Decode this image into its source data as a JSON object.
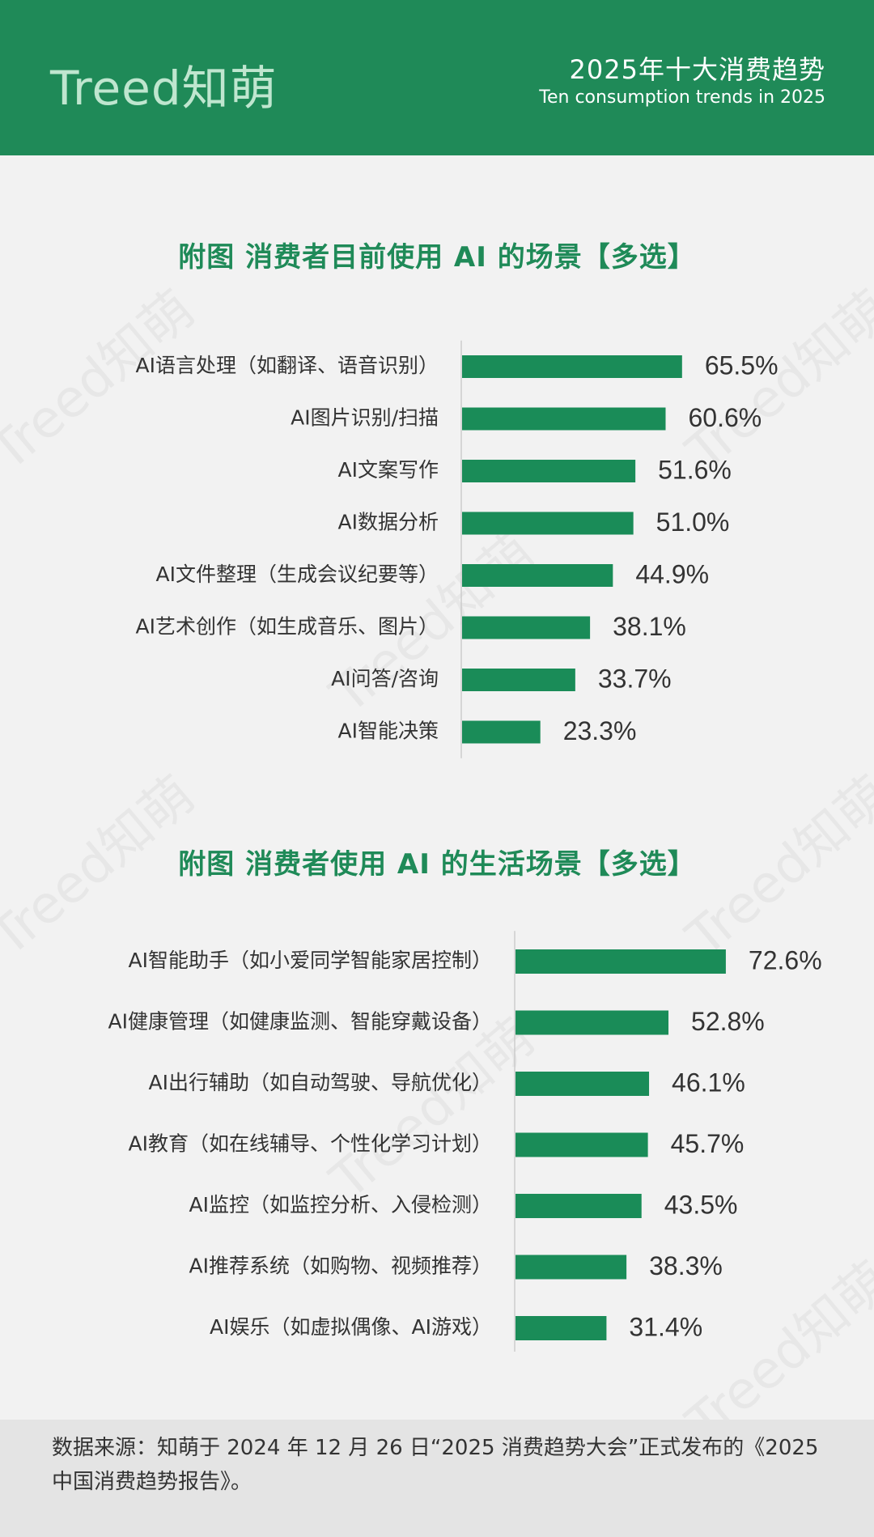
{
  "header": {
    "logo": "Treed知萌",
    "title_cn": "2025年十大消费趋势",
    "title_en": "Ten consumption trends in 2025"
  },
  "watermark": "Treed知萌",
  "colors": {
    "brand": "#1f8a58",
    "bar": "#1a8c58",
    "footer_bg": "#e4e4e4"
  },
  "chart_data": [
    {
      "type": "bar",
      "orientation": "horizontal",
      "title": "附图  消费者目前使用 AI 的场景【多选】",
      "categories": [
        "AI语言处理（如翻译、语音识别）",
        "AI图片识别/扫描",
        "AI文案写作",
        "AI数据分析",
        "AI文件整理（生成会议纪要等）",
        "AI艺术创作（如生成音乐、图片）",
        "AI问答/咨询",
        "AI智能决策"
      ],
      "values": [
        65.5,
        60.6,
        51.6,
        51.0,
        44.9,
        38.1,
        33.7,
        23.3
      ],
      "value_labels": [
        "65.5%",
        "60.6%",
        "51.6%",
        "51.0%",
        "44.9%",
        "38.1%",
        "33.7%",
        "23.3%"
      ],
      "unit": "%",
      "grid": false
    },
    {
      "type": "bar",
      "orientation": "horizontal",
      "title": "附图  消费者使用 AI 的生活场景【多选】",
      "categories": [
        "AI智能助手（如小爱同学智能家居控制）",
        "AI健康管理（如健康监测、智能穿戴设备）",
        "AI出行辅助（如自动驾驶、导航优化）",
        "AI教育（如在线辅导、个性化学习计划）",
        "AI监控（如监控分析、入侵检测）",
        "AI推荐系统（如购物、视频推荐）",
        "AI娱乐（如虚拟偶像、AI游戏）"
      ],
      "values": [
        72.6,
        52.8,
        46.1,
        45.7,
        43.5,
        38.3,
        31.4
      ],
      "value_labels": [
        "72.6%",
        "52.8%",
        "46.1%",
        "45.7%",
        "43.5%",
        "38.3%",
        "31.4%"
      ],
      "unit": "%",
      "grid": false
    }
  ],
  "footer": {
    "source": "数据来源：知萌于 2024 年 12 月 26 日“2025 消费趋势大会”正式发布的《2025 中国消费趋势报告》。"
  }
}
